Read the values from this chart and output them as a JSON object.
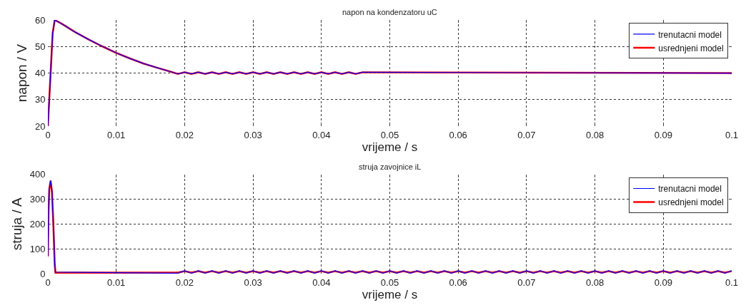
{
  "chart_data": [
    {
      "type": "line",
      "title": "napon na kondenzatoru uC",
      "xlabel": "vrijeme / s",
      "ylabel": "napon / V",
      "xlim": [
        0,
        0.1
      ],
      "xticks": [
        0,
        0.01,
        0.02,
        0.03,
        0.04,
        0.05,
        0.06,
        0.07,
        0.08,
        0.09,
        0.1
      ],
      "ylim": [
        20,
        60
      ],
      "yticks": [
        20,
        30,
        40,
        50,
        60
      ],
      "grid": true,
      "legend": "top right",
      "series": [
        {
          "name": "trenutacni model",
          "color": "#0000ff",
          "x": [
            0,
            0.0003,
            0.0007,
            0.001,
            0.002,
            0.004,
            0.006,
            0.008,
            0.01,
            0.012,
            0.014,
            0.016,
            0.018,
            0.019,
            0.02,
            0.021,
            0.022,
            0.023,
            0.024,
            0.025,
            0.026,
            0.027,
            0.028,
            0.029,
            0.03,
            0.031,
            0.032,
            0.033,
            0.034,
            0.035,
            0.036,
            0.037,
            0.038,
            0.039,
            0.04,
            0.041,
            0.042,
            0.043,
            0.044,
            0.045,
            0.046,
            0.1
          ],
          "values": [
            20,
            35,
            55,
            60,
            58.6,
            55.4,
            52.6,
            50.0,
            47.6,
            45.5,
            43.6,
            42.0,
            40.5,
            39.7,
            40.3,
            39.7,
            40.3,
            39.7,
            40.3,
            39.7,
            40.3,
            39.7,
            40.3,
            39.7,
            40.3,
            39.7,
            40.3,
            39.7,
            40.3,
            39.7,
            40.3,
            39.7,
            40.3,
            39.7,
            40.3,
            39.7,
            40.3,
            39.7,
            40.3,
            39.7,
            40.3,
            40
          ]
        },
        {
          "name": "usrednjeni model",
          "color": "#ff0000",
          "x": [
            0,
            0.0003,
            0.0007,
            0.001,
            0.002,
            0.004,
            0.006,
            0.008,
            0.01,
            0.012,
            0.014,
            0.016,
            0.018,
            0.019,
            0.02,
            0.021,
            0.022,
            0.023,
            0.024,
            0.025,
            0.026,
            0.027,
            0.028,
            0.029,
            0.03,
            0.031,
            0.032,
            0.033,
            0.034,
            0.035,
            0.036,
            0.037,
            0.038,
            0.039,
            0.04,
            0.041,
            0.042,
            0.043,
            0.044,
            0.045,
            0.046,
            0.1
          ],
          "values": [
            20,
            35,
            55,
            60,
            58.6,
            55.4,
            52.6,
            50.0,
            47.6,
            45.5,
            43.6,
            42.0,
            40.5,
            39.7,
            40.3,
            39.7,
            40.3,
            39.7,
            40.3,
            39.7,
            40.3,
            39.7,
            40.3,
            39.7,
            40.3,
            39.7,
            40.3,
            39.7,
            40.3,
            39.7,
            40.3,
            39.7,
            40.3,
            39.7,
            40.3,
            39.7,
            40.3,
            39.7,
            40.3,
            39.7,
            40.3,
            40
          ]
        }
      ]
    },
    {
      "type": "line",
      "title": "struja zavojnice iL",
      "xlabel": "vrijeme / s",
      "ylabel": "struja / A",
      "xlim": [
        0,
        0.1
      ],
      "xticks": [
        0,
        0.01,
        0.02,
        0.03,
        0.04,
        0.05,
        0.06,
        0.07,
        0.08,
        0.09,
        0.1
      ],
      "ylim": [
        0,
        400
      ],
      "yticks": [
        0,
        100,
        200,
        300,
        400
      ],
      "grid": true,
      "legend": "top right",
      "series": [
        {
          "name": "trenutacni model",
          "color": "#0000ff",
          "x": [
            0,
            0.0001,
            0.0002,
            0.0004,
            0.0006,
            0.0008,
            0.001,
            0.0011,
            0.019,
            0.02,
            0.021,
            0.022,
            0.023,
            0.024,
            0.025,
            0.026,
            0.027,
            0.028,
            0.029,
            0.03,
            0.031,
            0.032,
            0.033,
            0.034,
            0.035,
            0.036,
            0.037,
            0.038,
            0.039,
            0.04,
            0.041,
            0.042,
            0.043,
            0.044,
            0.045,
            0.046,
            0.047,
            0.048,
            0.049,
            0.05,
            0.051,
            0.052,
            0.053,
            0.054,
            0.055,
            0.056,
            0.057,
            0.058,
            0.059,
            0.06,
            0.061,
            0.062,
            0.063,
            0.064,
            0.065,
            0.066,
            0.067,
            0.068,
            0.069,
            0.07,
            0.071,
            0.072,
            0.073,
            0.074,
            0.075,
            0.076,
            0.077,
            0.078,
            0.079,
            0.08,
            0.081,
            0.082,
            0.083,
            0.084,
            0.085,
            0.086,
            0.087,
            0.088,
            0.089,
            0.09,
            0.091,
            0.092,
            0.093,
            0.094,
            0.095,
            0.096,
            0.097,
            0.098,
            0.099,
            0.1
          ],
          "values": [
            70,
            250,
            340,
            375,
            330,
            200,
            40,
            6,
            2,
            12,
            2,
            12,
            2,
            12,
            2,
            12,
            2,
            12,
            2,
            12,
            2,
            12,
            2,
            12,
            2,
            12,
            2,
            12,
            2,
            12,
            2,
            12,
            2,
            12,
            2,
            12,
            2,
            12,
            2,
            12,
            2,
            12,
            2,
            12,
            2,
            12,
            2,
            12,
            2,
            12,
            2,
            12,
            2,
            12,
            2,
            12,
            2,
            12,
            2,
            12,
            2,
            12,
            2,
            12,
            2,
            12,
            2,
            12,
            2,
            12,
            2,
            12,
            2,
            12,
            2,
            12,
            2,
            12,
            2,
            12,
            2,
            12,
            2,
            12,
            2,
            12,
            2,
            12,
            2,
            12
          ]
        },
        {
          "name": "usrednjeni model",
          "color": "#ff0000",
          "x": [
            0,
            0.0001,
            0.0002,
            0.0004,
            0.0006,
            0.0008,
            0.001,
            0.0011,
            0.019,
            0.02,
            0.021,
            0.022,
            0.023,
            0.024,
            0.025,
            0.026,
            0.027,
            0.028,
            0.029,
            0.03,
            0.031,
            0.032,
            0.033,
            0.034,
            0.035,
            0.036,
            0.037,
            0.038,
            0.039,
            0.04,
            0.041,
            0.042,
            0.043,
            0.044,
            0.045,
            0.046,
            0.047,
            0.048,
            0.049,
            0.05,
            0.051,
            0.052,
            0.053,
            0.054,
            0.055,
            0.056,
            0.057,
            0.058,
            0.059,
            0.06,
            0.061,
            0.062,
            0.063,
            0.064,
            0.065,
            0.066,
            0.067,
            0.068,
            0.069,
            0.07,
            0.071,
            0.072,
            0.073,
            0.074,
            0.075,
            0.076,
            0.077,
            0.078,
            0.079,
            0.08,
            0.081,
            0.082,
            0.083,
            0.084,
            0.085,
            0.086,
            0.087,
            0.088,
            0.089,
            0.09,
            0.091,
            0.092,
            0.093,
            0.094,
            0.095,
            0.096,
            0.097,
            0.098,
            0.099,
            0.1
          ],
          "values": [
            70,
            250,
            340,
            375,
            330,
            200,
            40,
            4,
            4,
            10,
            4,
            10,
            4,
            10,
            4,
            10,
            4,
            10,
            4,
            10,
            4,
            10,
            4,
            10,
            4,
            10,
            4,
            10,
            4,
            10,
            4,
            10,
            4,
            10,
            4,
            10,
            4,
            10,
            4,
            10,
            4,
            10,
            4,
            10,
            4,
            10,
            4,
            10,
            4,
            10,
            4,
            10,
            4,
            10,
            4,
            10,
            4,
            10,
            4,
            10,
            4,
            10,
            4,
            10,
            4,
            10,
            4,
            10,
            4,
            10,
            4,
            10,
            4,
            10,
            4,
            10,
            4,
            10,
            4,
            10,
            4,
            10,
            4,
            10,
            4,
            10,
            4,
            10,
            4,
            10
          ]
        }
      ]
    }
  ]
}
